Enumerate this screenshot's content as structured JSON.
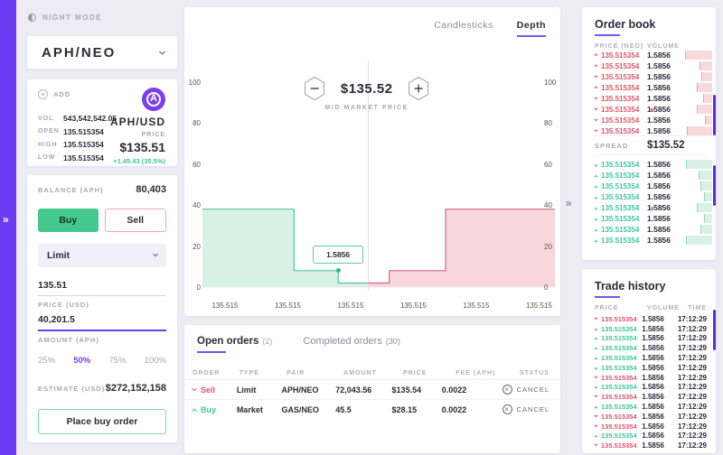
{
  "app": {
    "night_mode_label": "NIGHT MODE",
    "expander_left": "»",
    "expander_right": "»"
  },
  "colors": {
    "accent_purple": "#6c3cf3",
    "buy_green": "#43c88e",
    "sell_red": "#dd5670",
    "bid_green": "#3ec79c",
    "ask_red": "#dd5670"
  },
  "sidebar": {
    "pair_selector": {
      "value": "APH/NEO"
    },
    "market_card": {
      "add_label": "ADD",
      "logo_letter": "A",
      "stats": [
        {
          "label": "VOL",
          "value": "543,542,542.05"
        },
        {
          "label": "OPEN",
          "value": "135.515354"
        },
        {
          "label": "HIGH",
          "value": "135.515354"
        },
        {
          "label": "LOW",
          "value": "135.515354"
        }
      ],
      "quote": {
        "pair": "APH/USD",
        "price_label": "PRICE",
        "price": "$135.51",
        "change": "+1.45.43 (35.5%)"
      }
    },
    "trade_form": {
      "balance_label": "BALANCE (APH)",
      "balance_value": "80,403",
      "buy_label": "Buy",
      "sell_label": "Sell",
      "order_type": "Limit",
      "price_value": "135.51",
      "price_label": "PRICE (USD)",
      "amount_value": "40,201.5",
      "amount_label": "AMOUNT (APH)",
      "percent_options": [
        "25%",
        "50%",
        "75%",
        "100%"
      ],
      "percent_selected": "50%",
      "estimate_label": "ESTIMATE (USD)",
      "estimate_value": "$272,152,158",
      "submit_label": "Place buy order"
    }
  },
  "chart": {
    "tabs": [
      {
        "label": "Candlesticks",
        "active": false
      },
      {
        "label": "Depth",
        "active": true
      }
    ],
    "mid_price": "$135.52",
    "mid_price_label": "MID MARKET PRICE"
  },
  "chart_data": {
    "type": "area",
    "title": "Market depth",
    "ylim": [
      0,
      100
    ],
    "y_ticks": [
      0,
      20,
      40,
      60,
      80,
      100
    ],
    "x_tick_labels": [
      "135.515",
      "135.515",
      "135.515",
      "135.515",
      "135.515",
      "135.515"
    ],
    "mid_x": 0.47,
    "series": [
      {
        "name": "bids",
        "color": "#52c79b",
        "fill": "#d9f2e6",
        "points": [
          [
            0,
            38
          ],
          [
            0.26,
            38
          ],
          [
            0.26,
            8
          ],
          [
            0.385,
            8
          ],
          [
            0.385,
            2
          ],
          [
            0.47,
            2
          ]
        ]
      },
      {
        "name": "asks",
        "color": "#d4687d",
        "fill": "#f8d7dc",
        "points": [
          [
            0.47,
            2
          ],
          [
            0.53,
            2
          ],
          [
            0.53,
            8
          ],
          [
            0.69,
            8
          ],
          [
            0.69,
            38
          ],
          [
            1,
            38
          ]
        ]
      }
    ],
    "marker": {
      "x": 0.385,
      "value": 8,
      "label": "1.5856"
    }
  },
  "orders_panel": {
    "tabs": [
      {
        "label": "Open orders",
        "count": "(2)",
        "active": true
      },
      {
        "label": "Completed orders",
        "count": "(30)",
        "active": false
      }
    ],
    "columns": [
      "ORDER",
      "TYPE",
      "PAIR",
      "AMOUNT",
      "PRICE",
      "FEE (APH)",
      "STATUS"
    ],
    "rows": [
      {
        "side": "Sell",
        "direction": "down",
        "type": "Limit",
        "pair": "APH/NEO",
        "amount": "72,043.56",
        "price": "$135.54",
        "fee": "0.0022",
        "action": "CANCEL"
      },
      {
        "side": "Buy",
        "direction": "up",
        "type": "Market",
        "pair": "GAS/NEO",
        "amount": "45.5",
        "price": "$28.15",
        "fee": "0.0022",
        "action": "CANCEL"
      }
    ]
  },
  "order_book": {
    "title": "Order book",
    "columns": [
      "PRICE (NEO)",
      "VOLUME"
    ],
    "asks": [
      {
        "price": "135.515354",
        "volume": "1.5856",
        "bar": 1.0,
        "dot": false
      },
      {
        "price": "135.515354",
        "volume": "1.5856",
        "bar": 0.47,
        "dot": false
      },
      {
        "price": "135.515354",
        "volume": "1.5856",
        "bar": 0.4,
        "dot": false
      },
      {
        "price": "135.515354",
        "volume": "1.5856",
        "bar": 0.57,
        "dot": false
      },
      {
        "price": "135.515354",
        "volume": "1.5856",
        "bar": 0.33,
        "dot": false
      },
      {
        "price": "135.515354",
        "volume": "1.5856",
        "bar": 0.57,
        "dot": true
      },
      {
        "price": "135.515354",
        "volume": "1.5856",
        "bar": 0.27,
        "dot": false
      },
      {
        "price": "135.515354",
        "volume": "1.5856",
        "bar": 0.93,
        "dot": false
      }
    ],
    "spread_label": "SPREAD",
    "spread_value": "$135.52",
    "bids": [
      {
        "price": "135.515354",
        "volume": "1.5856",
        "bar": 0.95,
        "dot": false
      },
      {
        "price": "135.515354",
        "volume": "1.5856",
        "bar": 0.5,
        "dot": false
      },
      {
        "price": "135.515354",
        "volume": "1.5856",
        "bar": 0.43,
        "dot": false
      },
      {
        "price": "135.515354",
        "volume": "1.5856",
        "bar": 0.3,
        "dot": false
      },
      {
        "price": "135.515354",
        "volume": "1.5856",
        "bar": 0.57,
        "dot": true
      },
      {
        "price": "135.515354",
        "volume": "1.5856",
        "bar": 0.3,
        "dot": false
      },
      {
        "price": "135.515354",
        "volume": "1.5856",
        "bar": 0.43,
        "dot": false
      },
      {
        "price": "135.515354",
        "volume": "1.5856",
        "bar": 0.95,
        "dot": false
      }
    ]
  },
  "trade_history": {
    "title": "Trade history",
    "columns": [
      "PRICE",
      "VOLUME",
      "TIME"
    ],
    "rows": [
      {
        "direction": "down",
        "price": "135.515354",
        "volume": "1.5856",
        "time": "17:12:29"
      },
      {
        "direction": "up",
        "price": "135.515354",
        "volume": "1.5856",
        "time": "17:12:29"
      },
      {
        "direction": "up",
        "price": "135.515354",
        "volume": "1.5856",
        "time": "17:12:29"
      },
      {
        "direction": "up",
        "price": "135.515354",
        "volume": "1.5856",
        "time": "17:12:29"
      },
      {
        "direction": "up",
        "price": "135.515354",
        "volume": "1.5856",
        "time": "17:12:29"
      },
      {
        "direction": "up",
        "price": "135.515354",
        "volume": "1.5856",
        "time": "17:12:29"
      },
      {
        "direction": "down",
        "price": "135.515354",
        "volume": "1.5856",
        "time": "17:12:29"
      },
      {
        "direction": "up",
        "price": "135.515354",
        "volume": "1.5856",
        "time": "17:12:29"
      },
      {
        "direction": "down",
        "price": "135.515354",
        "volume": "1.5856",
        "time": "17:12:29"
      },
      {
        "direction": "up",
        "price": "135.515354",
        "volume": "1.5856",
        "time": "17:12:29"
      },
      {
        "direction": "down",
        "price": "135.515354",
        "volume": "1.5856",
        "time": "17:12:29"
      },
      {
        "direction": "down",
        "price": "135.515354",
        "volume": "1.5856",
        "time": "17:12:29"
      },
      {
        "direction": "up",
        "price": "135.515354",
        "volume": "1.5856",
        "time": "17:12:29"
      },
      {
        "direction": "down",
        "price": "135.515354",
        "volume": "1.5856",
        "time": "17:12:29"
      }
    ]
  }
}
